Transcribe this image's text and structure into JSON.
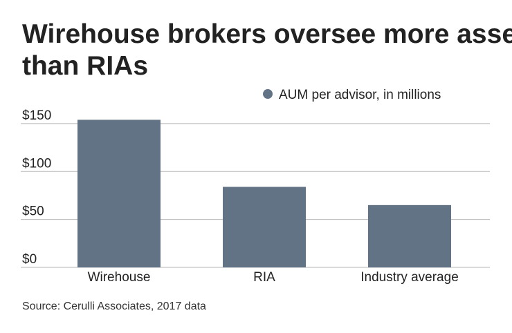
{
  "chart_data": {
    "type": "bar",
    "title": "Wirehouse brokers oversee more assets than RIAs",
    "legend": "AUM per advisor, in millions",
    "source": "Source: Cerulli Associates, 2017 data",
    "categories": [
      "Wirehouse",
      "RIA",
      "Industry average"
    ],
    "values": [
      154,
      84,
      65
    ],
    "color": "#627386",
    "ylim": [
      0,
      155
    ],
    "yticks": [
      {
        "value": 0,
        "label": "$0"
      },
      {
        "value": 50,
        "label": "$50"
      },
      {
        "value": 100,
        "label": "$100"
      },
      {
        "value": 150,
        "label": "$150"
      }
    ],
    "grid": true
  }
}
